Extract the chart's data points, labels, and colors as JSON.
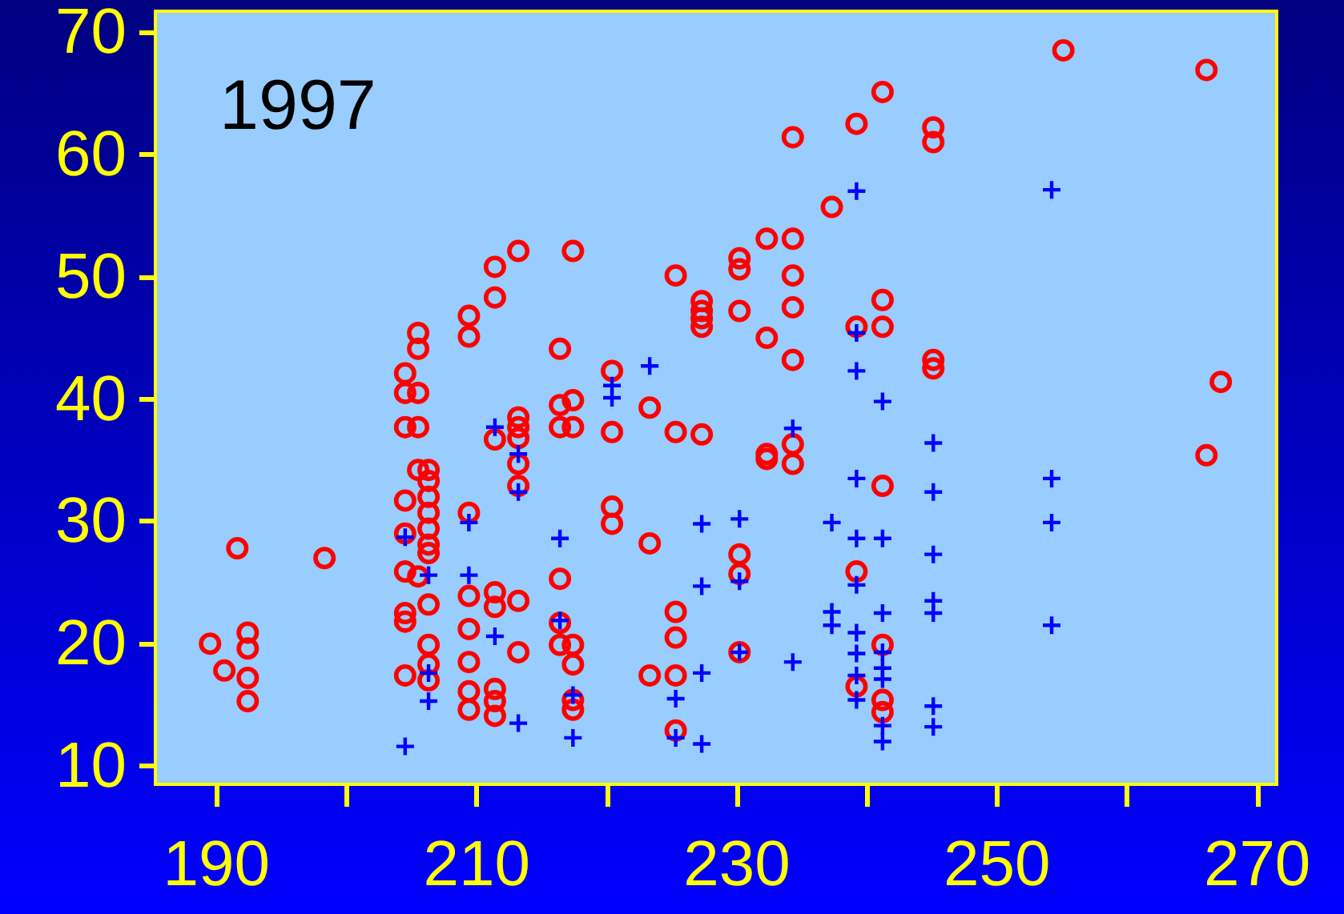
{
  "chart_data": {
    "type": "scatter",
    "annotations": [
      "1997"
    ],
    "xlim": [
      185.3,
      271.5
    ],
    "ylim": [
      8.5,
      71.7
    ],
    "xticks": [
      190,
      {
        "value": 200,
        "label": null
      },
      210,
      {
        "value": 220,
        "label": null
      },
      230,
      {
        "value": 240,
        "label": null
      },
      250,
      {
        "value": 260,
        "label": null
      },
      270
    ],
    "yticks": [
      10,
      20,
      30,
      40,
      50,
      60,
      70
    ],
    "series": [
      {
        "color": "#ff0000",
        "marker": "circle",
        "x": [
          189.5,
          190.6,
          192.4,
          192.4,
          192.4,
          192.4,
          191.6,
          198.3,
          204.5,
          204.5,
          204.5,
          204.5,
          204.5,
          204.5,
          204.5,
          204.5,
          204.5,
          205.5,
          205.5,
          205.5,
          205.5,
          205.5,
          205.5,
          206.3,
          206.3,
          206.3,
          206.3,
          206.3,
          206.3,
          206.3,
          206.3,
          206.3,
          206.3,
          206.3,
          209.4,
          209.4,
          209.4,
          209.4,
          209.4,
          209.4,
          209.4,
          209.4,
          211.4,
          211.4,
          211.4,
          211.4,
          211.4,
          211.4,
          211.4,
          211.4,
          213.2,
          213.2,
          213.2,
          213.2,
          213.2,
          213.2,
          213.2,
          213.2,
          216.4,
          216.4,
          216.4,
          216.4,
          216.4,
          216.4,
          217.4,
          217.4,
          217.4,
          217.4,
          217.4,
          217.4,
          217.4,
          220.4,
          220.4,
          220.4,
          220.4,
          223.3,
          223.3,
          223.3,
          225.3,
          225.3,
          225.3,
          225.3,
          225.3,
          225.3,
          227.3,
          227.3,
          227.3,
          227.3,
          227.3,
          230.2,
          230.2,
          230.2,
          230.2,
          230.2,
          230.2,
          232.3,
          232.3,
          232.3,
          232.3,
          234.3,
          234.3,
          234.3,
          234.3,
          234.3,
          234.3,
          234.3,
          237.3,
          239.2,
          239.2,
          239.2,
          239.2,
          241.2,
          241.2,
          241.2,
          241.2,
          241.2,
          241.2,
          241.2,
          245.1,
          245.1,
          245.1,
          245.1,
          255.1,
          266.1,
          266.1,
          267.2
        ],
        "values": [
          20.0,
          17.8,
          20.9,
          19.6,
          17.2,
          15.3,
          27.8,
          27.0,
          42.1,
          40.5,
          37.7,
          31.7,
          29.0,
          25.9,
          22.5,
          21.8,
          17.4,
          45.4,
          44.1,
          40.5,
          37.7,
          34.2,
          25.5,
          34.2,
          33.3,
          32.0,
          30.7,
          29.4,
          28.1,
          27.4,
          23.2,
          19.9,
          18.3,
          17.0,
          46.8,
          45.1,
          30.7,
          23.9,
          21.2,
          18.5,
          16.1,
          14.6,
          50.8,
          48.3,
          36.7,
          24.2,
          23.0,
          16.3,
          15.3,
          14.1,
          52.1,
          38.5,
          37.7,
          36.8,
          34.7,
          32.9,
          23.5,
          19.3,
          44.1,
          39.5,
          37.7,
          25.3,
          21.7,
          19.9,
          52.1,
          39.9,
          37.7,
          19.9,
          18.3,
          15.4,
          14.6,
          42.3,
          37.3,
          31.2,
          29.8,
          39.3,
          28.2,
          17.4,
          50.1,
          37.3,
          22.6,
          20.5,
          17.4,
          12.9,
          48.0,
          47.2,
          46.6,
          45.9,
          37.1,
          51.5,
          50.6,
          47.2,
          27.3,
          25.7,
          19.3,
          53.1,
          45.0,
          35.5,
          35.1,
          61.4,
          53.1,
          50.1,
          47.5,
          43.2,
          36.3,
          34.7,
          55.7,
          62.5,
          45.9,
          25.9,
          16.5,
          65.1,
          48.1,
          45.9,
          32.9,
          19.9,
          15.4,
          14.4,
          62.2,
          61.0,
          43.2,
          42.5,
          68.5,
          66.9,
          35.4,
          41.4
        ]
      },
      {
        "color": "#0000ff",
        "marker": "cross",
        "x": [
          204.5,
          204.5,
          206.3,
          206.3,
          206.3,
          209.4,
          209.4,
          211.4,
          211.4,
          213.2,
          213.2,
          213.2,
          216.4,
          216.4,
          217.4,
          217.4,
          220.4,
          220.4,
          223.3,
          225.3,
          225.3,
          227.3,
          227.3,
          227.3,
          227.3,
          230.2,
          230.2,
          230.2,
          234.3,
          234.3,
          237.3,
          237.3,
          237.3,
          239.2,
          239.2,
          239.2,
          239.2,
          239.2,
          239.2,
          239.2,
          239.2,
          239.2,
          239.2,
          241.2,
          241.2,
          241.2,
          241.2,
          241.2,
          241.2,
          241.2,
          241.2,
          245.1,
          245.1,
          245.1,
          245.1,
          245.1,
          245.1,
          245.1,
          254.2,
          254.2,
          254.2,
          254.2
        ],
        "values": [
          28.7,
          11.6,
          25.6,
          17.6,
          15.3,
          29.9,
          25.6,
          37.7,
          20.6,
          35.5,
          32.4,
          13.5,
          28.6,
          21.9,
          15.8,
          12.3,
          41.1,
          40.1,
          42.7,
          15.5,
          12.3,
          29.8,
          24.7,
          17.6,
          11.8,
          30.2,
          25.1,
          19.3,
          37.6,
          18.5,
          29.9,
          22.6,
          21.5,
          57.0,
          45.4,
          42.3,
          33.5,
          28.6,
          24.8,
          20.9,
          19.2,
          17.4,
          15.4,
          39.8,
          28.6,
          22.5,
          19.3,
          18.0,
          17.1,
          13.3,
          12.0,
          36.4,
          32.4,
          27.3,
          23.5,
          22.5,
          14.9,
          13.2,
          57.1,
          33.5,
          29.9,
          21.5
        ]
      }
    ]
  }
}
